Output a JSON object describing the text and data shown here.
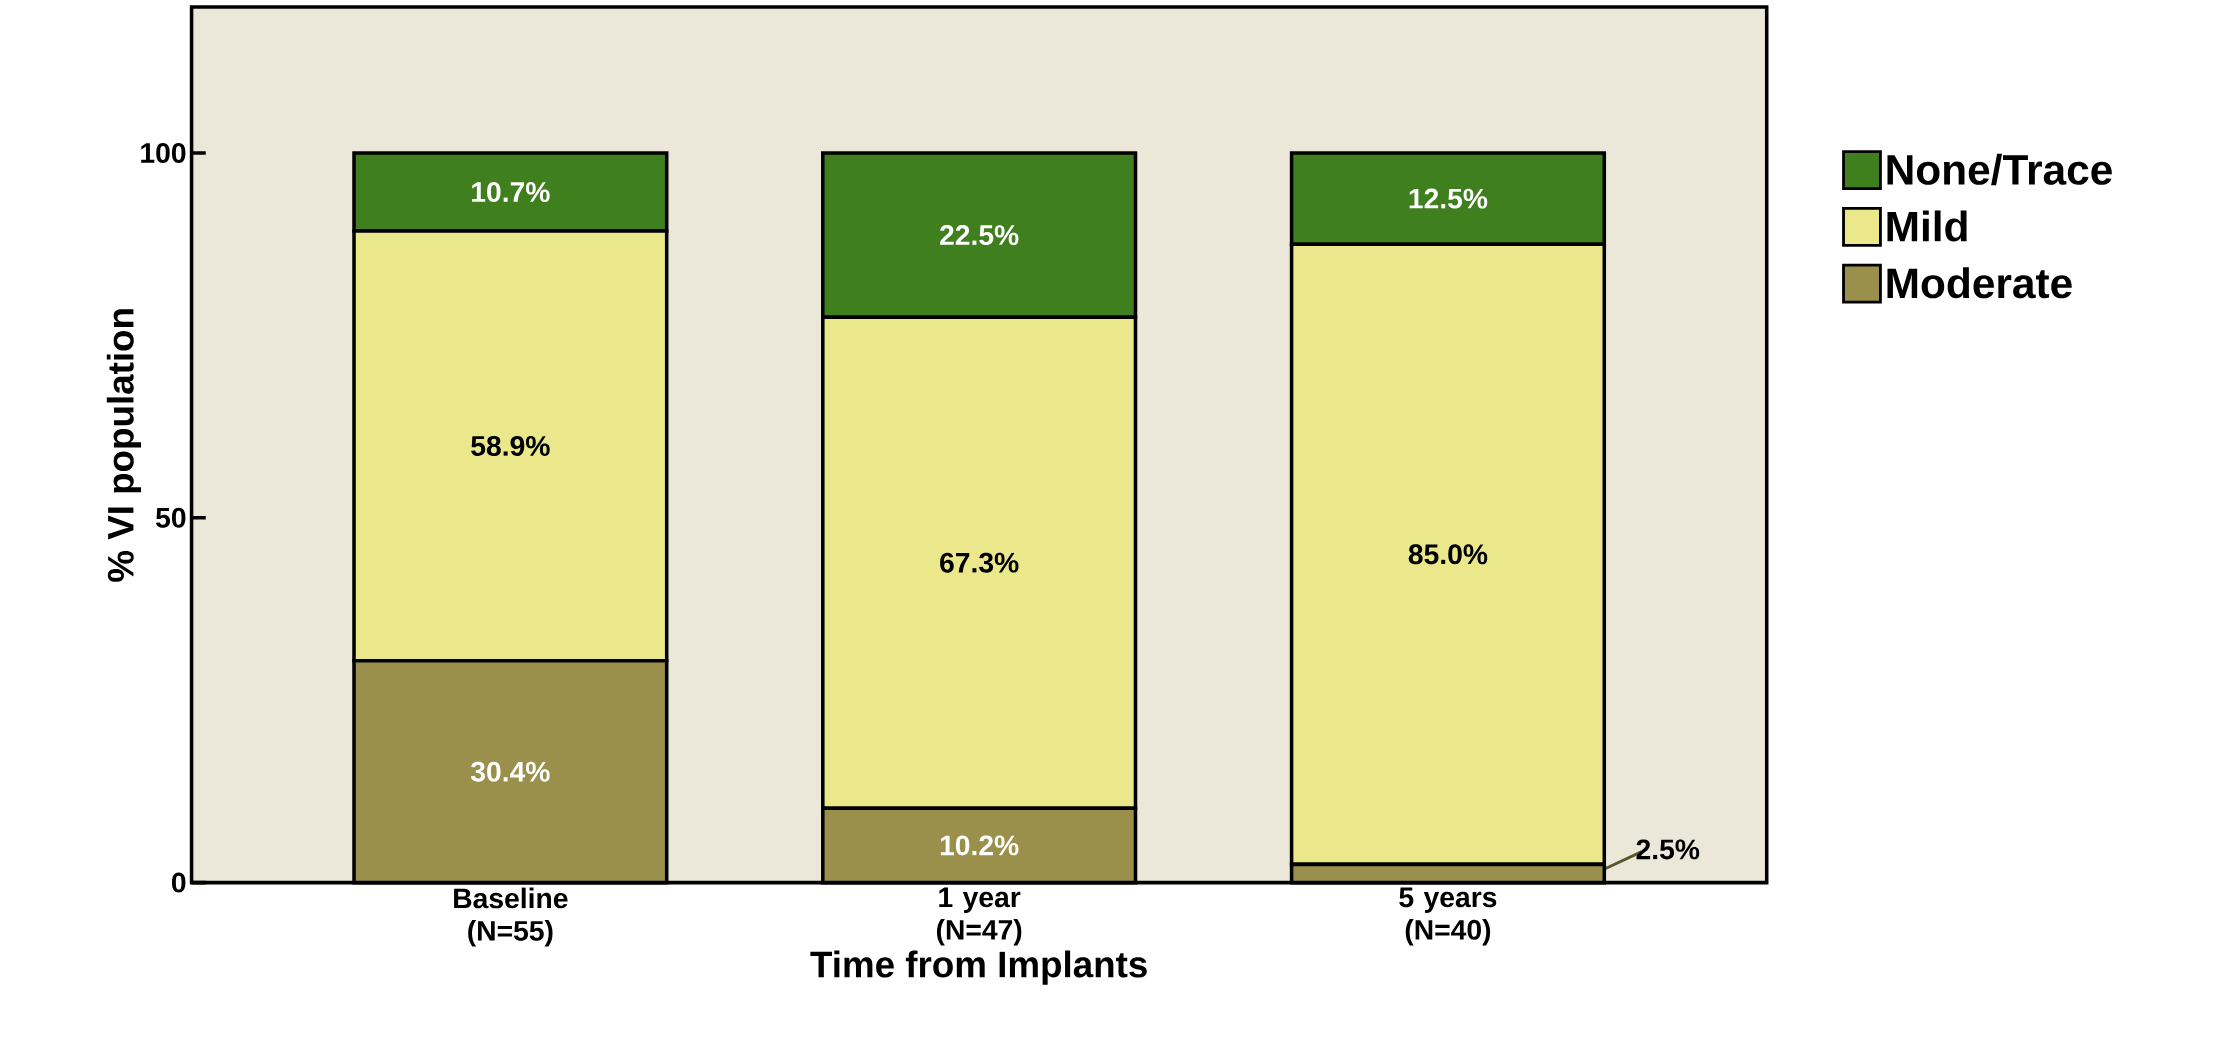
{
  "chart_data": {
    "type": "bar",
    "stacked": true,
    "xlabel": "Time from Implants",
    "ylabel": "% VI population",
    "categories": [
      "Baseline (N=55)",
      "1 year (N=47)",
      "5 years (N=40)"
    ],
    "series": [
      {
        "name": "Moderate",
        "color": "#9a8f4b",
        "values": [
          30.4,
          10.2,
          2.5
        ],
        "value_labels": [
          "30.4%",
          "10.2%",
          "2.5%"
        ]
      },
      {
        "name": "Mild",
        "color": "#ebe88c",
        "values": [
          58.9,
          67.3,
          85.0
        ],
        "value_labels": [
          "58.9%",
          "67.3%",
          "85.0%"
        ]
      },
      {
        "name": "None/Trace",
        "color": "#3f7f1e",
        "values": [
          10.7,
          22.5,
          12.5
        ],
        "value_labels": [
          "10.7%",
          "22.5%",
          "12.5%"
        ]
      }
    ],
    "ylim": [
      0,
      120
    ],
    "yticks": [
      0,
      50,
      100
    ],
    "legend": "right"
  }
}
